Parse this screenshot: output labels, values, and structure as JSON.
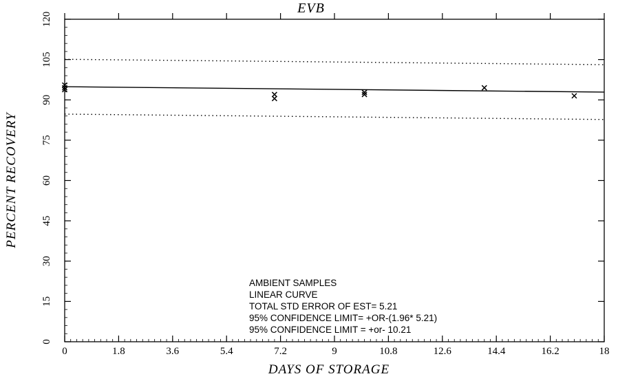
{
  "chart_data": {
    "type": "scatter",
    "title": "EVB",
    "xlabel": "DAYS OF STORAGE",
    "ylabel": "PERCENT RECOVERY",
    "xlim": [
      0,
      18
    ],
    "ylim": [
      0,
      120
    ],
    "x_ticks": [
      "0",
      "1.8",
      "3.6",
      "5.4",
      "7.2",
      "9",
      "10.8",
      "12.6",
      "14.4",
      "16.2",
      "18"
    ],
    "y_ticks": [
      "0",
      "15",
      "30",
      "45",
      "60",
      "75",
      "90",
      "105",
      "120"
    ],
    "grid": false,
    "points": [
      {
        "x": 0,
        "y": 95.5
      },
      {
        "x": 0,
        "y": 94.5
      },
      {
        "x": 0,
        "y": 93.8
      },
      {
        "x": 7,
        "y": 92.0
      },
      {
        "x": 7,
        "y": 90.5
      },
      {
        "x": 10,
        "y": 92.0
      },
      {
        "x": 10,
        "y": 92.8
      },
      {
        "x": 14,
        "y": 94.5
      },
      {
        "x": 17,
        "y": 91.5
      }
    ],
    "fit_line": {
      "x": [
        0,
        18
      ],
      "y": [
        94.9,
        92.9
      ]
    },
    "confidence_upper": {
      "x": [
        0,
        18
      ],
      "y": [
        105.1,
        103.1
      ]
    },
    "confidence_lower": {
      "x": [
        0,
        18
      ],
      "y": [
        84.7,
        82.7
      ]
    },
    "annotations": [
      "AMBIENT SAMPLES",
      "LINEAR CURVE",
      "TOTAL STD ERROR OF EST=  5.21",
      "95% CONFIDENCE LIMIT= +OR-(1.96* 5.21)",
      "95% CONFIDENCE LIMIT = +or- 10.21"
    ]
  }
}
